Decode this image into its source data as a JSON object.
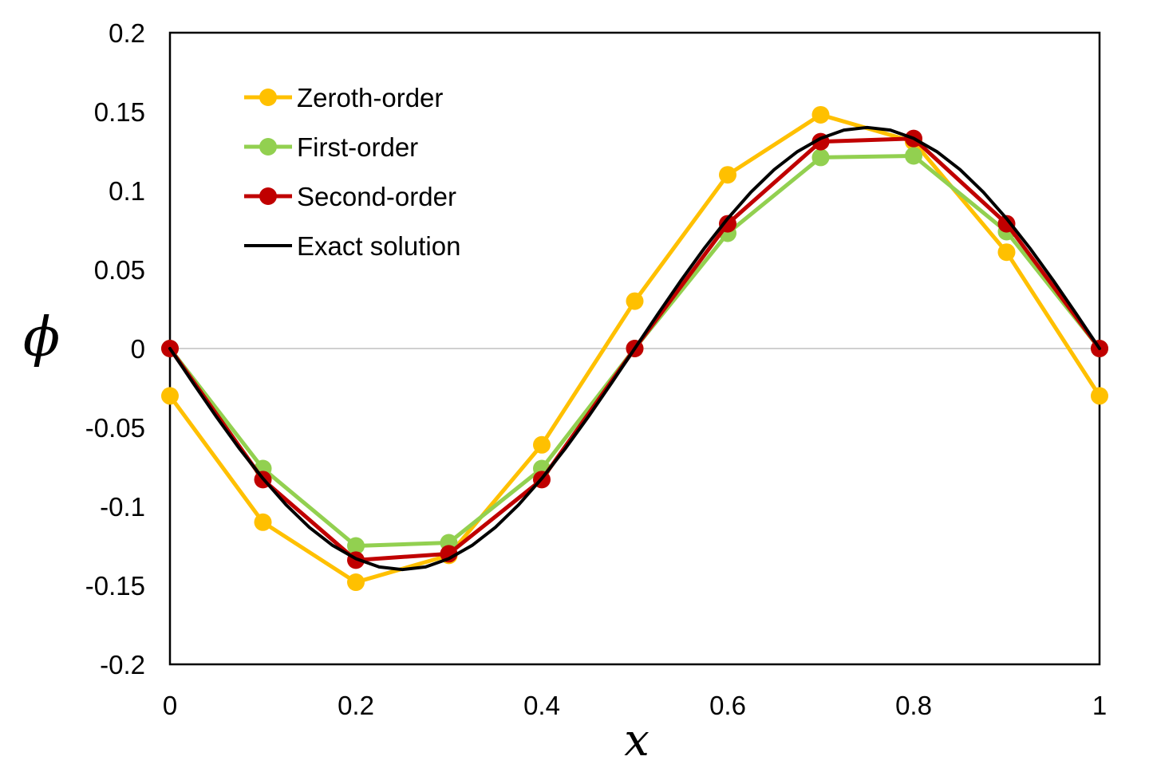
{
  "chart_data": {
    "type": "line",
    "title": "",
    "xlabel": "x",
    "ylabel": "ϕ",
    "xlim": [
      0,
      1
    ],
    "ylim": [
      -0.2,
      0.2
    ],
    "x_ticks": [
      0,
      0.2,
      0.4,
      0.6,
      0.8,
      1
    ],
    "y_ticks": [
      0.2,
      0.15,
      0.1,
      0.05,
      0,
      -0.05,
      -0.1,
      -0.15,
      -0.2
    ],
    "grid": "zero-line-only",
    "gridline_color": "#d0d0d0",
    "axis_color": "#000000",
    "legend_position": "inside-top-left",
    "x": [
      0,
      0.1,
      0.2,
      0.3,
      0.4,
      0.5,
      0.6,
      0.7,
      0.8,
      0.9,
      1
    ],
    "series": [
      {
        "name": "Zeroth-order",
        "color": "#FFC000",
        "marker": "circle",
        "values": [
          -0.03,
          -0.11,
          -0.148,
          -0.131,
          -0.061,
          0.03,
          0.11,
          0.148,
          0.131,
          0.061,
          -0.03
        ]
      },
      {
        "name": "First-order",
        "color": "#92D050",
        "marker": "circle",
        "values": [
          0,
          -0.076,
          -0.125,
          -0.123,
          -0.076,
          0,
          0.073,
          0.121,
          0.122,
          0.074,
          0
        ]
      },
      {
        "name": "Second-order",
        "color": "#C00000",
        "marker": "circle",
        "values": [
          0,
          -0.083,
          -0.134,
          -0.13,
          -0.083,
          0,
          0.079,
          0.131,
          0.133,
          0.079,
          0
        ]
      },
      {
        "name": "Exact solution",
        "color": "#000000",
        "marker": "none",
        "x": [
          0,
          0.025,
          0.05,
          0.075,
          0.1,
          0.125,
          0.15,
          0.175,
          0.2,
          0.225,
          0.25,
          0.275,
          0.3,
          0.325,
          0.35,
          0.375,
          0.4,
          0.425,
          0.45,
          0.475,
          0.5,
          0.525,
          0.55,
          0.575,
          0.6,
          0.625,
          0.65,
          0.675,
          0.7,
          0.725,
          0.75,
          0.775,
          0.8,
          0.825,
          0.85,
          0.875,
          0.9,
          0.925,
          0.95,
          0.975,
          1
        ],
        "values": [
          0,
          -0.0219,
          -0.0433,
          -0.0636,
          -0.0823,
          -0.099,
          -0.1133,
          -0.1247,
          -0.1331,
          -0.1383,
          -0.14,
          -0.1383,
          -0.1331,
          -0.1247,
          -0.1133,
          -0.099,
          -0.0823,
          -0.0636,
          -0.0433,
          -0.0219,
          0,
          0.0219,
          0.0433,
          0.0636,
          0.0823,
          0.099,
          0.1133,
          0.1247,
          0.1331,
          0.1383,
          0.14,
          0.1383,
          0.1331,
          0.1247,
          0.1133,
          0.099,
          0.0823,
          0.0636,
          0.0433,
          0.0219,
          0
        ]
      }
    ]
  }
}
